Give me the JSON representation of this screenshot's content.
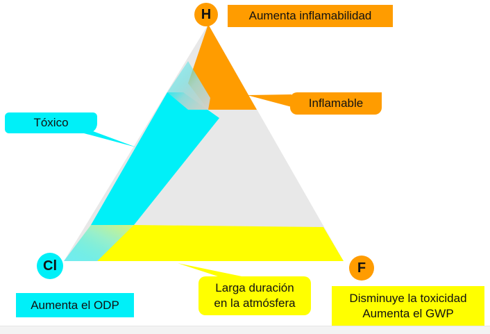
{
  "vertices": {
    "h": "H",
    "cl": "Cl",
    "f": "F"
  },
  "labels": {
    "aumenta_inflamabilidad": "Aumenta inflamabilidad",
    "inflamable": "Inflamable",
    "toxico": "Tóxico",
    "aumenta_odp": "Aumenta el ODP",
    "larga_duracion_line1": "Larga duración",
    "larga_duracion_line2": "en la atmósfera",
    "f_line1": "Disminuye la toxicidad",
    "f_line2": "Aumenta el GWP"
  },
  "colors": {
    "orange": "#ff9c00",
    "cyan": "#00f0f8",
    "yellow": "#ffff00",
    "gray": "#e8e8e8"
  }
}
